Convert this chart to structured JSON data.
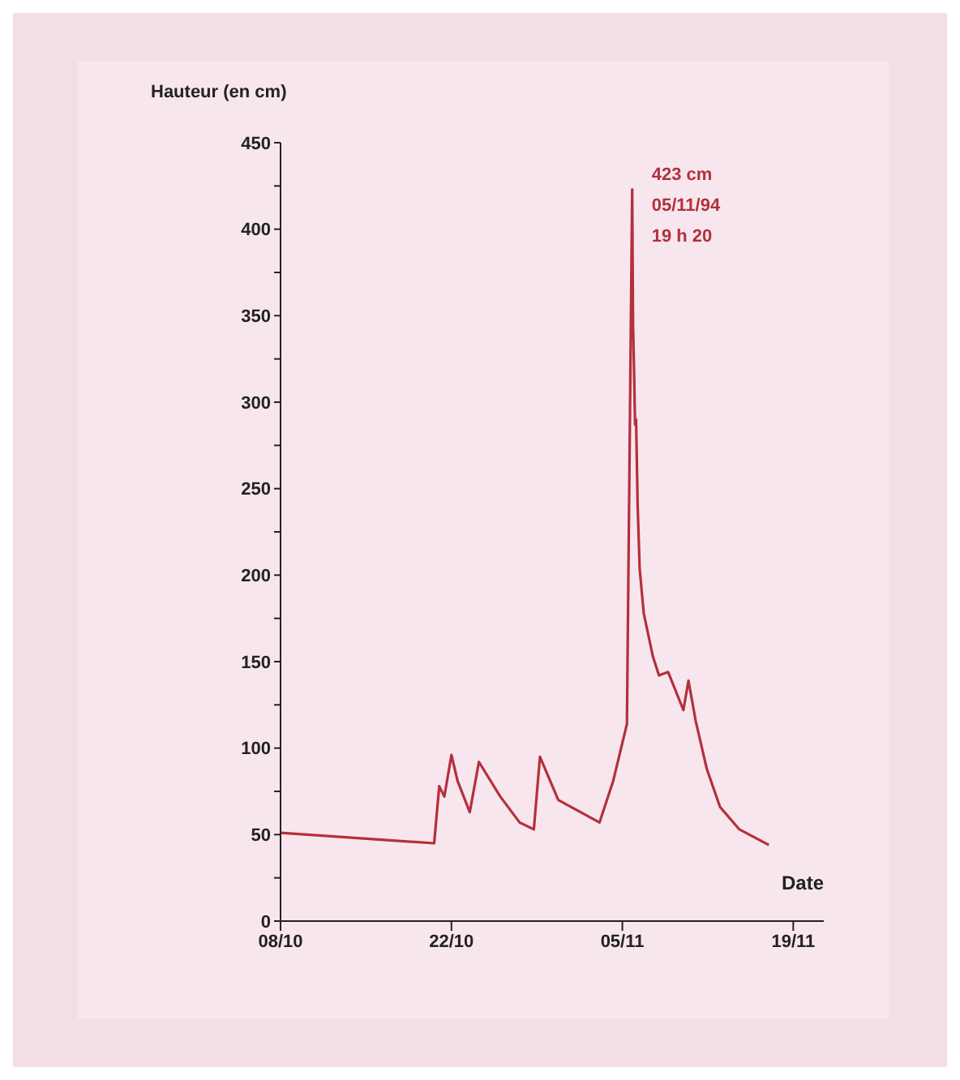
{
  "chart_data": {
    "type": "line",
    "ylabel": "Hauteur (en cm)",
    "xlabel": "Date",
    "x": [
      "--10-08",
      "--10-20T14:00",
      "--10-21",
      "--10-21T10:00",
      "--10-22",
      "--10-22T12:00",
      "--10-23T12:00",
      "--10-24T06:00",
      "--10-26",
      "--10-27T14:00",
      "--10-28T18:00",
      "--10-29T06:00",
      "--10-30T18:00",
      "--11-03T03:00",
      "--11-04T06:00",
      "--11-05T09:00",
      "--11-05T19:20",
      "--11-05T21:00",
      "--11-05T23:00",
      "--11-06T01:00",
      "--11-06T03:00",
      "--11-06T06:00",
      "--11-06T10:00",
      "--11-06T18:00",
      "--11-07T12:00",
      "--11-08",
      "--11-08T18:00",
      "--11-10",
      "--11-10T10:00",
      "--11-11",
      "--11-11T22:00",
      "--11-13",
      "--11-14T14:00",
      "--11-17"
    ],
    "series": [
      {
        "color": "#b3303c",
        "values": [
          51,
          45,
          78,
          72,
          96,
          81,
          63,
          92,
          72,
          57,
          53,
          95,
          70,
          57,
          81,
          114,
          423,
          345,
          318,
          287,
          290,
          241,
          204,
          178,
          153,
          142,
          144,
          122,
          139,
          116,
          88,
          66,
          53,
          44
        ]
      }
    ],
    "xlim": [
      "--10-08",
      "--11-21T12:00"
    ],
    "xticks": [
      {
        "value": "--10-08",
        "label": "08/10"
      },
      {
        "value": "--10-22",
        "label": "22/10"
      },
      {
        "value": "--11-05",
        "label": "05/11"
      },
      {
        "value": "--11-19",
        "label": "19/11"
      }
    ],
    "ylim": [
      0,
      450
    ],
    "yticks": [
      0,
      {
        "value": 25,
        "label": null
      },
      50,
      {
        "value": 75,
        "label": null
      },
      100,
      {
        "value": 125,
        "label": null
      },
      150,
      {
        "value": 175,
        "label": null
      },
      200,
      {
        "value": 225,
        "label": null
      },
      250,
      {
        "value": 275,
        "label": null
      },
      300,
      {
        "value": 325,
        "label": null
      },
      350,
      {
        "value": 375,
        "label": null
      },
      400,
      {
        "value": 425,
        "label": null
      },
      450
    ],
    "annotations": [
      {
        "text": "423 cm\n05/11/94\n19 h 20",
        "x": "--11-05T19:20",
        "y": 423
      }
    ],
    "grid": false,
    "legend": false,
    "marker": "none",
    "line_style": "solid"
  }
}
